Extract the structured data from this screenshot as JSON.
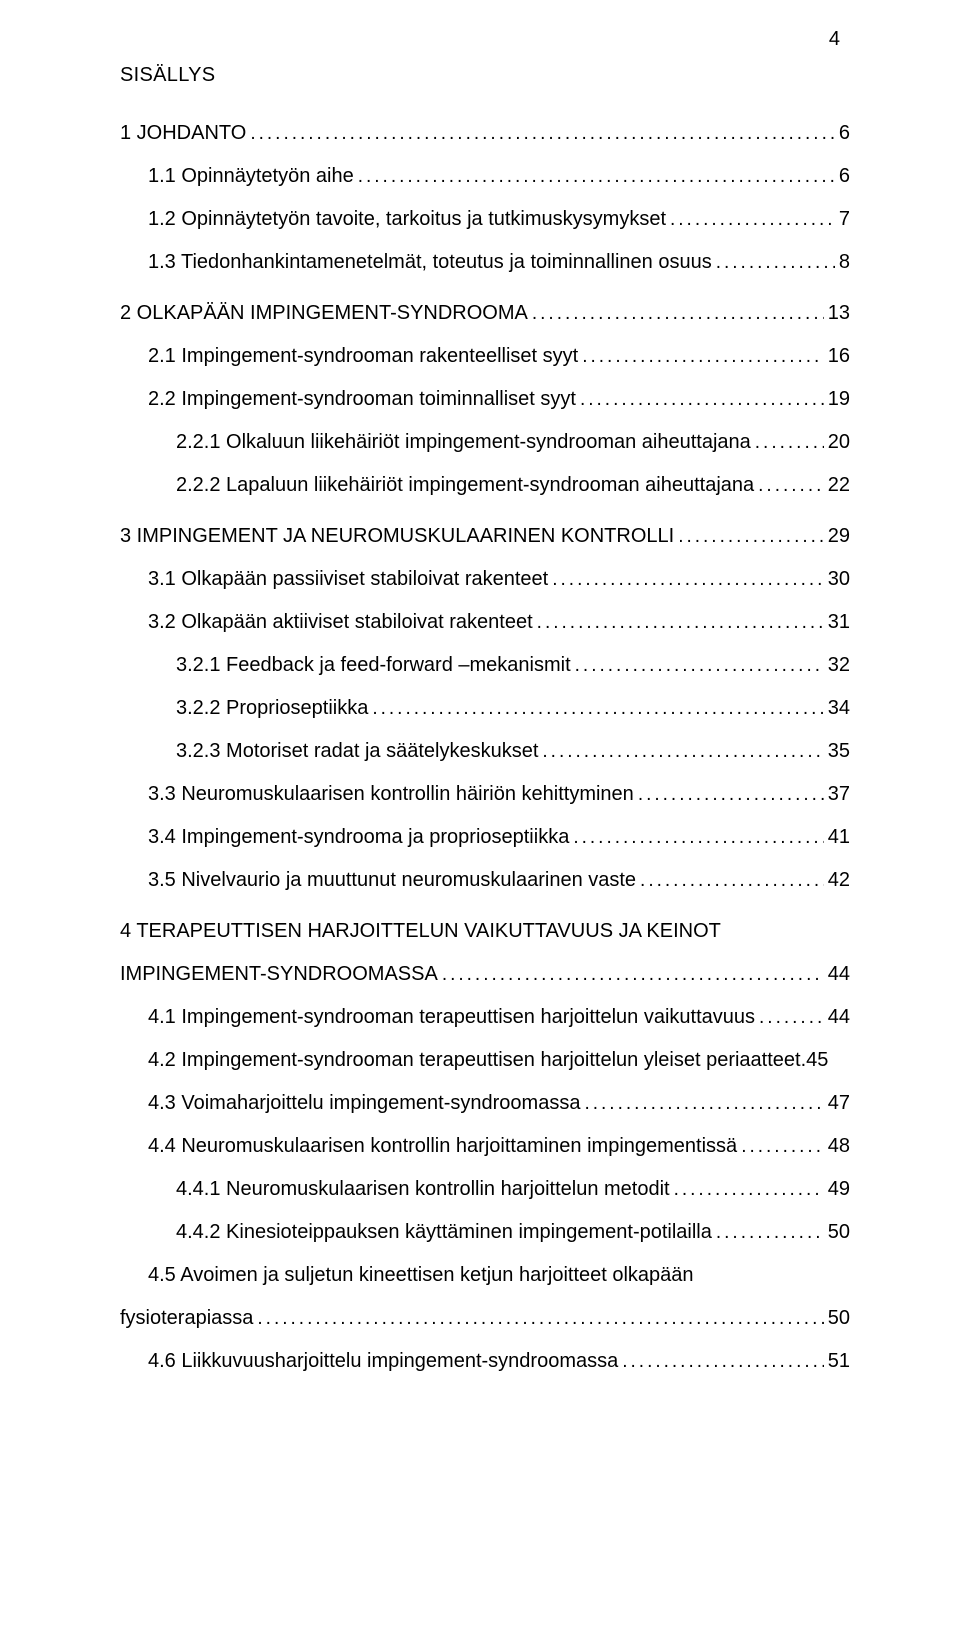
{
  "page_number": "4",
  "heading": "SISÄLLYS",
  "font": {
    "family": "Arial",
    "size_pt": 15,
    "color": "#000000"
  },
  "background_color": "#ffffff",
  "toc": [
    {
      "level": 1,
      "section": true,
      "title": "1 JOHDANTO",
      "page": "6"
    },
    {
      "level": 2,
      "title": "1.1 Opinnäytetyön aihe",
      "page": "6"
    },
    {
      "level": 2,
      "title": "1.2 Opinnäytetyön tavoite, tarkoitus ja tutkimuskysymykset",
      "page": "7"
    },
    {
      "level": 2,
      "title": "1.3 Tiedonhankintamenetelmät, toteutus ja toiminnallinen osuus",
      "page": "8"
    },
    {
      "level": 1,
      "section": true,
      "title": "2 OLKAPÄÄN IMPINGEMENT-SYNDROOMA",
      "page": "13"
    },
    {
      "level": 2,
      "title": "2.1 Impingement-syndrooman rakenteelliset syyt",
      "page": "16"
    },
    {
      "level": 2,
      "title": "2.2 Impingement-syndrooman toiminnalliset syyt",
      "page": "19"
    },
    {
      "level": 3,
      "title": "2.2.1 Olkaluun liikehäiriöt impingement-syndrooman aiheuttajana",
      "page": "20"
    },
    {
      "level": 3,
      "title": "2.2.2 Lapaluun liikehäiriöt impingement-syndrooman aiheuttajana",
      "page": "22"
    },
    {
      "level": 1,
      "section": true,
      "title": "3 IMPINGEMENT JA NEUROMUSKULAARINEN KONTROLLI",
      "page": "29"
    },
    {
      "level": 2,
      "title": "3.1 Olkapään passiiviset stabiloivat rakenteet",
      "page": "30"
    },
    {
      "level": 2,
      "title": "3.2 Olkapään aktiiviset stabiloivat rakenteet",
      "page": "31"
    },
    {
      "level": 3,
      "title": "3.2.1 Feedback ja feed-forward –mekanismit",
      "page": "32"
    },
    {
      "level": 3,
      "title": "3.2.2 Proprioseptiikka",
      "page": "34"
    },
    {
      "level": 3,
      "title": "3.2.3 Motoriset radat ja säätelykeskukset",
      "page": "35"
    },
    {
      "level": 2,
      "title": "3.3 Neuromuskulaarisen kontrollin häiriön kehittyminen",
      "page": "37"
    },
    {
      "level": 2,
      "title": "3.4 Impingement-syndrooma ja proprioseptiikka",
      "page": "41"
    },
    {
      "level": 2,
      "title": "3.5 Nivelvaurio ja muuttunut neuromuskulaarinen vaste",
      "page": "42"
    },
    {
      "level": 1,
      "section": true,
      "multiline_title_top": "4 TERAPEUTTISEN HARJOITTELUN VAIKUTTAVUUS JA KEINOT",
      "title": "IMPINGEMENT-SYNDROOMASSA",
      "page": "44"
    },
    {
      "level": 2,
      "title": "4.1 Impingement-syndrooman terapeuttisen harjoittelun vaikuttavuus",
      "page": "44"
    },
    {
      "level": 2,
      "title": "4.2 Impingement-syndrooman terapeuttisen harjoittelun yleiset periaatteet",
      "page": "45",
      "tight_leader": true
    },
    {
      "level": 2,
      "title": "4.3 Voimaharjoittelu impingement-syndroomassa",
      "page": "47"
    },
    {
      "level": 2,
      "title": "4.4 Neuromuskulaarisen kontrollin harjoittaminen impingementissä",
      "page": "48"
    },
    {
      "level": 3,
      "title": "4.4.1 Neuromuskulaarisen kontrollin harjoittelun metodit",
      "page": "49"
    },
    {
      "level": 3,
      "title": "4.4.2 Kinesioteippauksen käyttäminen impingement-potilailla",
      "page": "50"
    },
    {
      "level": 2,
      "multiline_title_top": "4.5 Avoimen ja suljetun kineettisen ketjun harjoitteet olkapään",
      "title": "fysioterapiassa",
      "page": "50"
    },
    {
      "level": 2,
      "title": "4.6 Liikkuvuusharjoittelu impingement-syndroomassa",
      "page": "51"
    }
  ]
}
